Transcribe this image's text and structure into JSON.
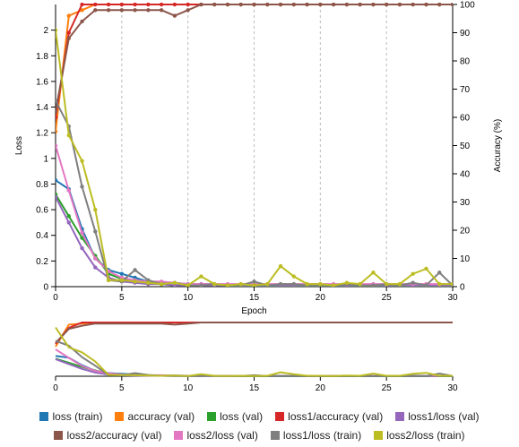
{
  "chart_data": {
    "type": "line",
    "xlabel": "Epoch",
    "ylabel": "Loss",
    "y2label": "Accuracy (%)",
    "xlim": [
      0,
      30
    ],
    "ylim": [
      0,
      2.2
    ],
    "y2lim": [
      0,
      100
    ],
    "xticks": [
      "0",
      "5",
      "10",
      "15",
      "20",
      "25",
      "30"
    ],
    "yticks": [
      "0",
      "0.2",
      "0.4",
      "0.6",
      "0.8",
      "1",
      "1.2",
      "1.4",
      "1.6",
      "1.8",
      "2"
    ],
    "y2ticks": [
      "0",
      "10",
      "20",
      "30",
      "40",
      "50",
      "60",
      "70",
      "80",
      "90",
      "100"
    ],
    "grid": "vertical dashed",
    "legend_position": "bottom",
    "series": [
      {
        "name": "loss (train)",
        "color": "#1f77b4",
        "axis": "loss",
        "values": [
          0.83,
          0.76,
          0.45,
          0.22,
          0.13,
          0.1,
          0.07,
          0.04,
          0.03,
          0.03,
          0.02,
          0.02,
          0.02,
          0.01,
          0.01,
          0.01,
          0.01,
          0.01,
          0.01,
          0.01,
          0.01,
          0.01,
          0.01,
          0.01,
          0.01,
          0.01,
          0.01,
          0.01,
          0.01,
          0.01,
          0.01
        ]
      },
      {
        "name": "accuracy (val)",
        "color": "#ff7f0e",
        "axis": "accuracy",
        "values": [
          55,
          96,
          98,
          100,
          100,
          100,
          100,
          100,
          100,
          100,
          100,
          100,
          100,
          100,
          100,
          100,
          100,
          100,
          100,
          100,
          100,
          100,
          100,
          100,
          100,
          100,
          100,
          100,
          100,
          100,
          100
        ]
      },
      {
        "name": "loss (val)",
        "color": "#2ca02c",
        "axis": "loss",
        "values": [
          0.72,
          0.55,
          0.38,
          0.24,
          0.1,
          0.06,
          0.04,
          0.03,
          0.02,
          0.01,
          0.01,
          0.01,
          0.01,
          0.01,
          0.0,
          0.0,
          0.0,
          0.0,
          0.0,
          0.0,
          0.0,
          0.0,
          0.0,
          0.0,
          0.0,
          0.0,
          0.0,
          0.0,
          0.0,
          0.0,
          0.0
        ]
      },
      {
        "name": "loss1/accuracy (val)",
        "color": "#d62728",
        "axis": "accuracy",
        "values": [
          60,
          90,
          100,
          100,
          100,
          100,
          100,
          100,
          100,
          100,
          100,
          100,
          100,
          100,
          100,
          100,
          100,
          100,
          100,
          100,
          100,
          100,
          100,
          100,
          100,
          100,
          100,
          100,
          100,
          100,
          100
        ]
      },
      {
        "name": "loss1/loss (val)",
        "color": "#9467bd",
        "axis": "loss",
        "values": [
          0.7,
          0.5,
          0.3,
          0.15,
          0.07,
          0.04,
          0.03,
          0.02,
          0.02,
          0.01,
          0.01,
          0.01,
          0.01,
          0.01,
          0.01,
          0.01,
          0.01,
          0.01,
          0.01,
          0.01,
          0.01,
          0.01,
          0.01,
          0.01,
          0.01,
          0.01,
          0.01,
          0.01,
          0.01,
          0.01,
          0.01
        ]
      },
      {
        "name": "loss2/accuracy (val)",
        "color": "#8c564b",
        "axis": "accuracy",
        "values": [
          62,
          88,
          94,
          98,
          98,
          98,
          98,
          98,
          98,
          96,
          98,
          100,
          100,
          100,
          100,
          100,
          100,
          100,
          100,
          100,
          100,
          100,
          100,
          100,
          100,
          100,
          100,
          100,
          100,
          100,
          100
        ]
      },
      {
        "name": "loss2/loss (val)",
        "color": "#e377c2",
        "axis": "loss",
        "values": [
          1.1,
          0.75,
          0.42,
          0.22,
          0.12,
          0.07,
          0.05,
          0.04,
          0.04,
          0.03,
          0.02,
          0.02,
          0.02,
          0.02,
          0.02,
          0.02,
          0.02,
          0.02,
          0.02,
          0.02,
          0.02,
          0.02,
          0.02,
          0.02,
          0.02,
          0.02,
          0.02,
          0.02,
          0.02,
          0.02,
          0.02
        ]
      },
      {
        "name": "loss1/loss (train)",
        "color": "#7f7f7f",
        "axis": "loss",
        "values": [
          1.45,
          1.25,
          0.78,
          0.43,
          0.05,
          0.04,
          0.13,
          0.05,
          0.02,
          0.03,
          0.01,
          0.01,
          0.02,
          0.01,
          0.01,
          0.04,
          0.01,
          0.02,
          0.02,
          0.01,
          0.01,
          0.01,
          0.02,
          0.01,
          0.01,
          0.02,
          0.01,
          0.03,
          0.01,
          0.11,
          0.01
        ]
      },
      {
        "name": "loss2/loss (train)",
        "color": "#bcbd22",
        "axis": "loss",
        "values": [
          2.0,
          1.18,
          0.98,
          0.6,
          0.05,
          0.05,
          0.04,
          0.03,
          0.02,
          0.03,
          0.01,
          0.08,
          0.02,
          0.01,
          0.02,
          0.01,
          0.02,
          0.16,
          0.08,
          0.02,
          0.02,
          0.01,
          0.03,
          0.02,
          0.11,
          0.02,
          0.02,
          0.1,
          0.14,
          0.02,
          0.02
        ]
      }
    ]
  }
}
